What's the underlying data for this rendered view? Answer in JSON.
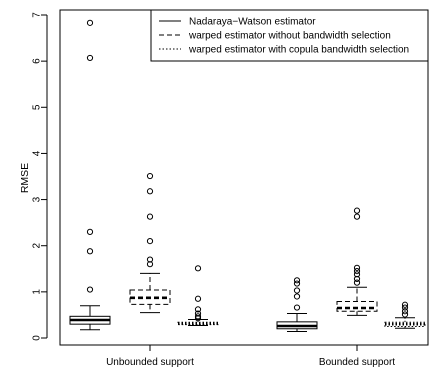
{
  "chart_data": {
    "type": "boxplot",
    "title": "",
    "xlabel": "",
    "ylabel": "RMSE",
    "ylim": [
      0,
      7
    ],
    "yticks": [
      0,
      1,
      2,
      3,
      4,
      5,
      6,
      7
    ],
    "group_labels": [
      "Unbounded support",
      "Bounded support"
    ],
    "grid": false,
    "legend_position": "top-right",
    "series": [
      {
        "name": "Nadaraya−Watson estimator",
        "line_style": "solid"
      },
      {
        "name": "warped estimator without bandwidth selection",
        "line_style": "dashed"
      },
      {
        "name": "warped estimator with copula bandwidth selection",
        "line_style": "dotted"
      }
    ],
    "boxes": [
      {
        "group": "Unbounded support",
        "series": 0,
        "whisker_low": 0.18,
        "q1": 0.3,
        "median": 0.39,
        "q3": 0.47,
        "whisker_high": 0.7,
        "outliers": [
          1.05,
          1.88,
          2.3,
          6.07,
          6.83
        ]
      },
      {
        "group": "Unbounded support",
        "series": 1,
        "whisker_low": 0.55,
        "q1": 0.73,
        "median": 0.87,
        "q3": 1.04,
        "whisker_high": 1.4,
        "outliers": [
          1.6,
          1.7,
          2.1,
          2.63,
          3.18,
          3.51
        ]
      },
      {
        "group": "Unbounded support",
        "series": 2,
        "whisker_low": 0.27,
        "q1": 0.29,
        "median": 0.31,
        "q3": 0.34,
        "whisker_high": 0.4,
        "outliers": [
          0.43,
          0.47,
          0.53,
          0.62,
          0.85,
          1.51
        ]
      },
      {
        "group": "Bounded support",
        "series": 0,
        "whisker_low": 0.14,
        "q1": 0.2,
        "median": 0.26,
        "q3": 0.35,
        "whisker_high": 0.53,
        "outliers": [
          0.66,
          0.9,
          1.03,
          1.18,
          1.25
        ]
      },
      {
        "group": "Bounded support",
        "series": 1,
        "whisker_low": 0.49,
        "q1": 0.58,
        "median": 0.65,
        "q3": 0.79,
        "whisker_high": 1.1,
        "outliers": [
          1.2,
          1.28,
          1.38,
          1.45,
          1.52,
          2.63,
          2.76
        ]
      },
      {
        "group": "Bounded support",
        "series": 2,
        "whisker_low": 0.21,
        "q1": 0.25,
        "median": 0.3,
        "q3": 0.34,
        "whisker_high": 0.44,
        "outliers": [
          0.51,
          0.58,
          0.66,
          0.72
        ]
      }
    ]
  }
}
